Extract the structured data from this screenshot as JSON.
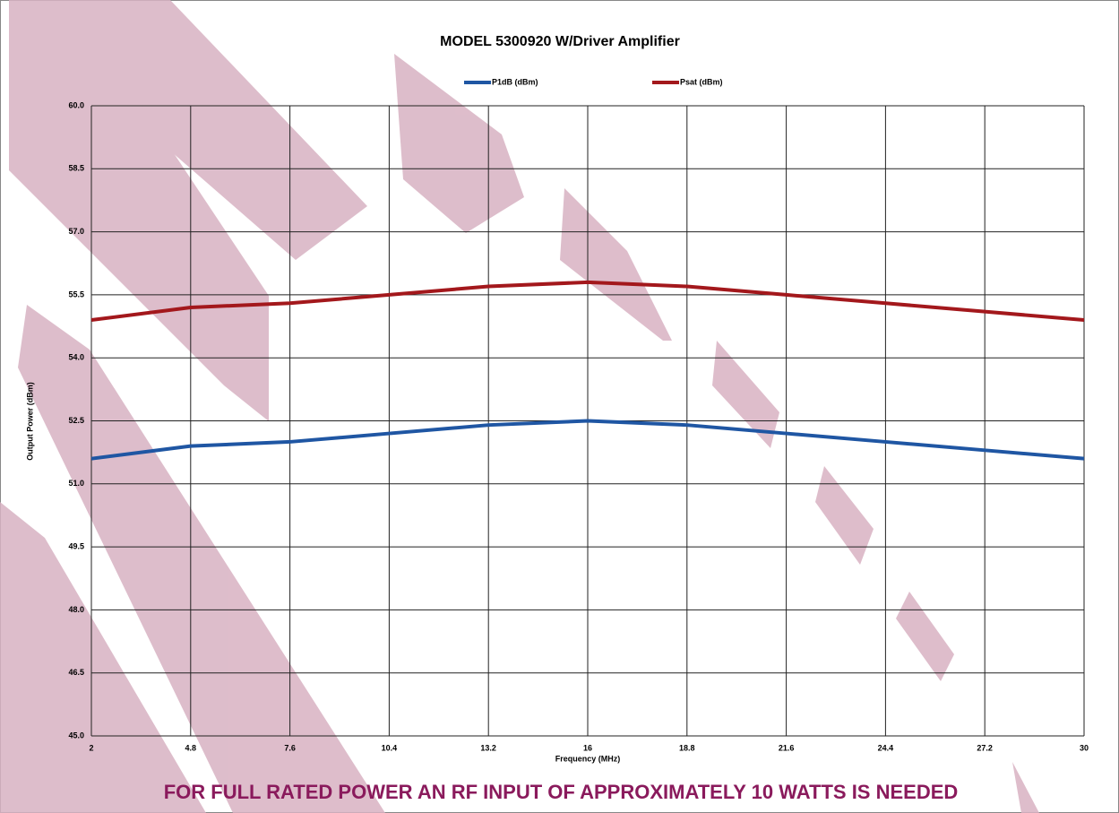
{
  "chart_data": {
    "type": "line",
    "title": "MODEL 5300920 W/Driver Amplifier",
    "x_label": "Frequency (MHz)",
    "y_label": "Output Power (dBm)",
    "x": [
      2,
      4.8,
      7.6,
      10.4,
      13.2,
      16,
      18.8,
      21.6,
      24.4,
      27.2,
      30
    ],
    "series": [
      {
        "name": "P1dB (dBm)",
        "color": "#1f56a3",
        "values": [
          51.6,
          51.9,
          52.0,
          52.2,
          52.4,
          52.5,
          52.4,
          52.2,
          52.0,
          51.8,
          51.6
        ]
      },
      {
        "name": "Psat (dBm)",
        "color": "#a3181c",
        "values": [
          54.9,
          55.2,
          55.3,
          55.5,
          55.7,
          55.8,
          55.7,
          55.5,
          55.3,
          55.1,
          54.9
        ]
      }
    ],
    "xlim": [
      2,
      30
    ],
    "xticks": [
      2,
      4.8,
      7.6,
      10.4,
      13.2,
      16,
      18.8,
      21.6,
      24.4,
      27.2,
      30
    ],
    "ylim": [
      45,
      60
    ],
    "yticks": [
      {
        "value": 60,
        "label": "60.0"
      },
      58.5,
      {
        "value": 57,
        "label": "57.0"
      },
      55.5,
      {
        "value": 54,
        "label": "54.0"
      },
      52.5,
      {
        "value": 51,
        "label": "51.0"
      },
      49.5,
      {
        "value": 48,
        "label": "48.0"
      },
      46.5,
      {
        "value": 45,
        "label": "45.0"
      }
    ],
    "grid": true,
    "legend": "top",
    "annotation": "FOR FULL RATED POWER AN RF INPUT OF APPROXIMATELY 10 WATTS IS NEEDED"
  }
}
